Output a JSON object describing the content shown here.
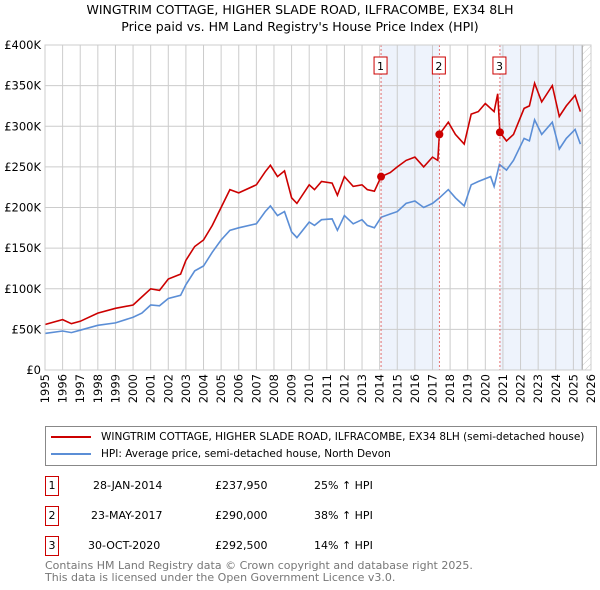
{
  "chart_data": {
    "type": "line",
    "title": "WINGTRIM COTTAGE, HIGHER SLADE ROAD, ILFRACOMBE, EX34 8LH",
    "subtitle": "Price paid vs. HM Land Registry's House Price Index (HPI)",
    "xlim": [
      1995,
      2026
    ],
    "ylim": [
      0,
      400000
    ],
    "x_ticks": [
      "1995",
      "1996",
      "1997",
      "1998",
      "1999",
      "2000",
      "2001",
      "2002",
      "2003",
      "2004",
      "2005",
      "2006",
      "2007",
      "2008",
      "2009",
      "2010",
      "2011",
      "2012",
      "2013",
      "2014",
      "2015",
      "2016",
      "2017",
      "2018",
      "2019",
      "2020",
      "2021",
      "2022",
      "2023",
      "2024",
      "2025",
      "2026"
    ],
    "y_ticks": [
      {
        "v": 0,
        "label": "£0"
      },
      {
        "v": 50000,
        "label": "£50K"
      },
      {
        "v": 100000,
        "label": "£100K"
      },
      {
        "v": 150000,
        "label": "£150K"
      },
      {
        "v": 200000,
        "label": "£200K"
      },
      {
        "v": 250000,
        "label": "£250K"
      },
      {
        "v": 300000,
        "label": "£300K"
      },
      {
        "v": 350000,
        "label": "£350K"
      },
      {
        "v": 400000,
        "label": "£400K"
      }
    ],
    "grid": true,
    "series": [
      {
        "name": "WINGTRIM COTTAGE, HIGHER SLADE ROAD, ILFRACOMBE, EX34 8LH (semi-detached house)",
        "color": "#cc0000",
        "x": [
          1995,
          1996,
          1996.5,
          1997,
          1998,
          1999,
          2000,
          2000.5,
          2001,
          2001.5,
          2002,
          2002.7,
          2003,
          2003.5,
          2004,
          2004.5,
          2005,
          2005.5,
          2006,
          2007,
          2007.5,
          2007.8,
          2008.2,
          2008.6,
          2009,
          2009.3,
          2010,
          2010.3,
          2010.7,
          2011.3,
          2011.6,
          2012,
          2012.5,
          2013,
          2013.3,
          2013.7,
          2014.08,
          2014.6,
          2015,
          2015.5,
          2016,
          2016.5,
          2017,
          2017.3,
          2017.39,
          2017.9,
          2018.3,
          2018.8,
          2019.2,
          2019.6,
          2020,
          2020.5,
          2020.7,
          2020.83,
          2021.2,
          2021.6,
          2022.2,
          2022.5,
          2022.8,
          2023.2,
          2023.8,
          2024.2,
          2024.6,
          2025.1,
          2025.4
        ],
        "y": [
          56000,
          62000,
          57000,
          60000,
          70000,
          76000,
          80000,
          90000,
          100000,
          98000,
          112000,
          118000,
          135000,
          152000,
          160000,
          178000,
          200000,
          222000,
          218000,
          228000,
          244000,
          252000,
          238000,
          245000,
          212000,
          205000,
          228000,
          222000,
          232000,
          230000,
          215000,
          238000,
          226000,
          228000,
          222000,
          220000,
          237950,
          243000,
          250000,
          258000,
          262000,
          250000,
          262000,
          258000,
          290000,
          305000,
          290000,
          278000,
          315000,
          318000,
          328000,
          318000,
          340000,
          292500,
          282000,
          290000,
          322000,
          325000,
          353000,
          330000,
          350000,
          312000,
          325000,
          338000,
          318000
        ]
      },
      {
        "name": "HPI: Average price, semi-detached house, North Devon",
        "color": "#5b8ed6",
        "x": [
          1995,
          1996,
          1996.5,
          1997,
          1998,
          1999,
          2000,
          2000.5,
          2001,
          2001.5,
          2002,
          2002.7,
          2003,
          2003.5,
          2004,
          2004.5,
          2005,
          2005.5,
          2006,
          2007,
          2007.5,
          2007.8,
          2008.2,
          2008.6,
          2009,
          2009.3,
          2010,
          2010.3,
          2010.7,
          2011.3,
          2011.6,
          2012,
          2012.5,
          2013,
          2013.3,
          2013.7,
          2014.08,
          2014.6,
          2015,
          2015.5,
          2016,
          2016.5,
          2017,
          2017.4,
          2017.9,
          2018.3,
          2018.8,
          2019.2,
          2019.6,
          2020.3,
          2020.5,
          2020.8,
          2021.2,
          2021.6,
          2022.2,
          2022.5,
          2022.8,
          2023.2,
          2023.8,
          2024.2,
          2024.6,
          2025.1,
          2025.4
        ],
        "y": [
          45000,
          48000,
          46000,
          49000,
          55000,
          58000,
          65000,
          70000,
          80000,
          79000,
          88000,
          92000,
          105000,
          122000,
          128000,
          145000,
          160000,
          172000,
          175000,
          180000,
          195000,
          202000,
          190000,
          195000,
          170000,
          163000,
          182000,
          178000,
          185000,
          186000,
          172000,
          190000,
          180000,
          185000,
          178000,
          175000,
          188000,
          192000,
          195000,
          205000,
          208000,
          200000,
          205000,
          212000,
          222000,
          212000,
          202000,
          228000,
          232000,
          238000,
          226000,
          253000,
          246000,
          258000,
          285000,
          282000,
          308000,
          290000,
          305000,
          272000,
          285000,
          296000,
          278000
        ]
      }
    ],
    "sales": [
      {
        "id": "1",
        "x": 2014.08,
        "date": "28-JAN-2014",
        "price": 237950,
        "price_label": "£237,950",
        "hpi": "25% ↑ HPI"
      },
      {
        "id": "2",
        "x": 2017.39,
        "date": "23-MAY-2017",
        "price": 290000,
        "price_label": "£290,000",
        "hpi": "38% ↑ HPI"
      },
      {
        "id": "3",
        "x": 2020.83,
        "date": "30-OCT-2020",
        "price": 292500,
        "price_label": "£292,500",
        "hpi": "14% ↑ HPI"
      }
    ],
    "shaded_ranges": [
      [
        2014.08,
        2017.39
      ],
      [
        2020.83,
        2025.5
      ]
    ],
    "data_end": 2025.5,
    "legend_position": "below"
  },
  "footer": [
    "Contains HM Land Registry data © Crown copyright and database right 2025.",
    "This data is licensed under the Open Government Licence v3.0."
  ]
}
